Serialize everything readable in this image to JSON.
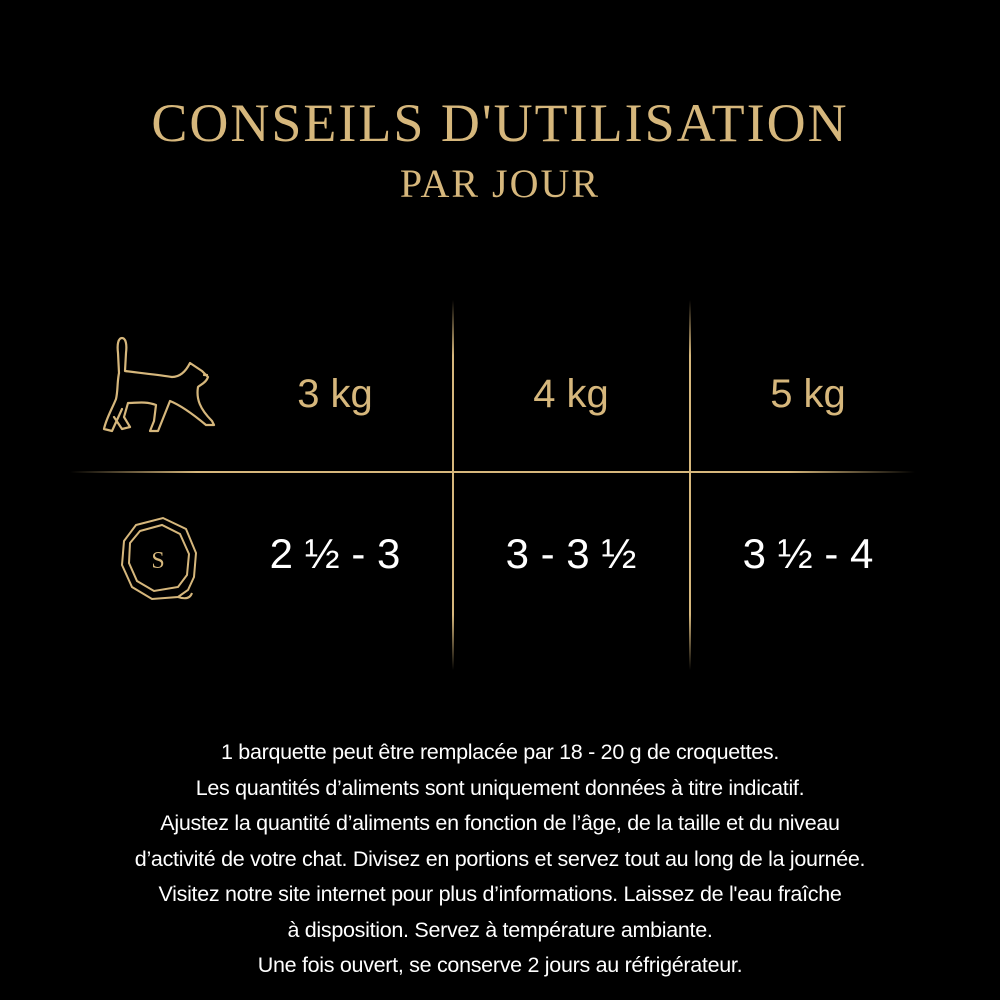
{
  "colors": {
    "background": "#000000",
    "gold": "#d6b77c",
    "text": "#ffffff"
  },
  "header": {
    "title": "CONSEILS D'UTILISATION",
    "subtitle": "PAR JOUR"
  },
  "table": {
    "row_icons": [
      "cat-icon",
      "pouch-seal-icon"
    ],
    "seal_letter": "S",
    "weights": [
      "3 kg",
      "4 kg",
      "5 kg"
    ],
    "quantities": [
      "2 ½ - 3",
      "3 - 3 ½",
      "3 ½ - 4"
    ]
  },
  "notes": [
    "1 barquette peut être remplacée par 18 - 20 g de croquettes.",
    "Les quantités d’aliments sont uniquement données à titre indicatif.",
    "Ajustez la quantité d’aliments en fonction de l’âge, de la taille et du niveau",
    "d’activité de votre chat. Divisez en portions et servez tout au long de la journée.",
    "Visitez notre site internet pour plus d’informations. Laissez de l'eau fraîche",
    "à disposition. Servez à température ambiante.",
    "Une fois ouvert, se conserve 2 jours au réfrigérateur."
  ]
}
